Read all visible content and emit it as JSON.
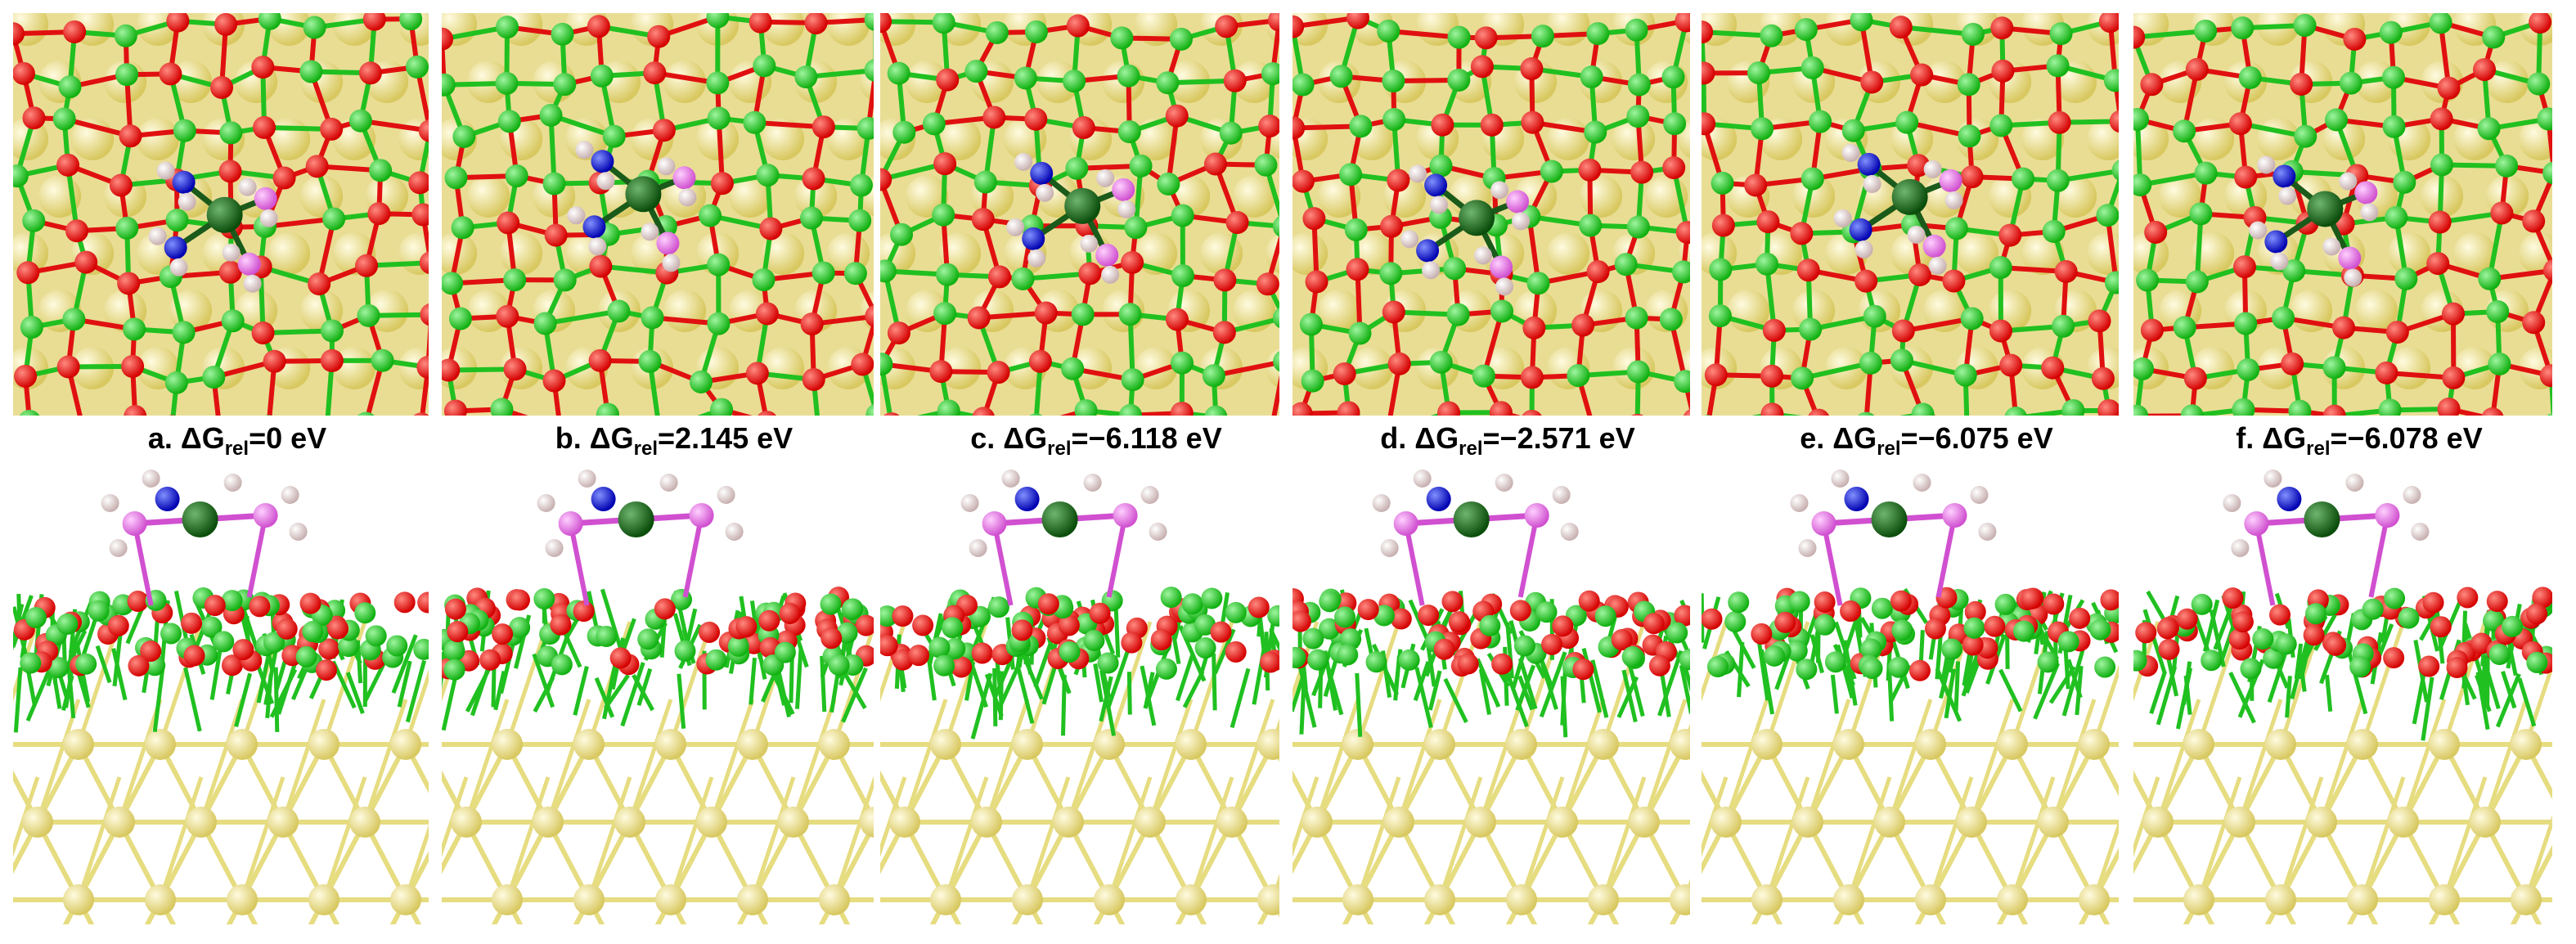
{
  "panels": [
    {
      "label": {
        "prefix": "a. ΔG",
        "sub": "rel",
        "value": "=0 eV"
      }
    },
    {
      "label": {
        "prefix": "b. ΔG",
        "sub": "rel",
        "value": "=2.145 eV"
      }
    },
    {
      "label": {
        "prefix": "c. ΔG",
        "sub": "rel",
        "value": "=−6.118 eV"
      }
    },
    {
      "label": {
        "prefix": "d. ΔG",
        "sub": "rel",
        "value": "=−2.571 eV"
      }
    },
    {
      "label": {
        "prefix": "e. ΔG",
        "sub": "rel",
        "value": "=−6.075 eV"
      }
    },
    {
      "label": {
        "prefix": "f. ΔG",
        "sub": "rel",
        "value": "=−6.078 eV"
      }
    }
  ]
}
